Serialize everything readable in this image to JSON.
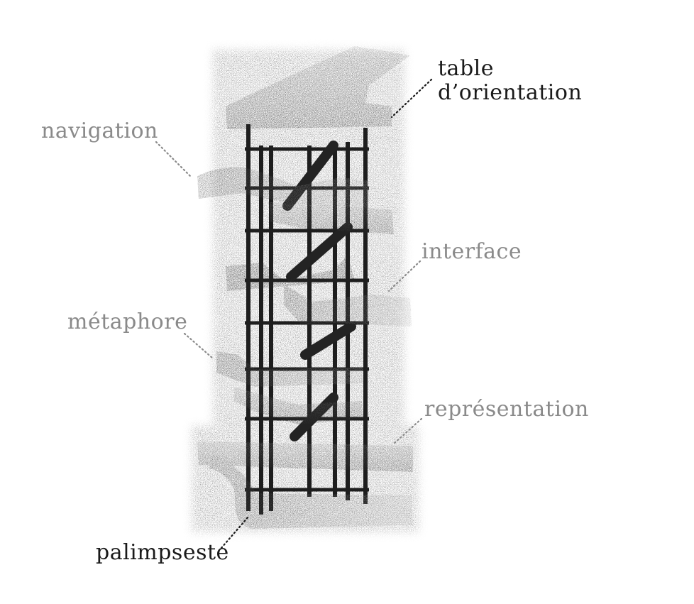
{
  "labels": {
    "table_orientation_line1": "table",
    "table_orientation_line2": "d’orientation",
    "navigation": "navigation",
    "interface": "interface",
    "metaphore": "métaphore",
    "representation": "représentation",
    "palimpseste": "palimpseste"
  },
  "colors": {
    "dark_label": "#1a1a1a",
    "grey_label": "#8a8a8a",
    "structure": "#1e1e1e",
    "stipple": "#2a2a2a"
  }
}
